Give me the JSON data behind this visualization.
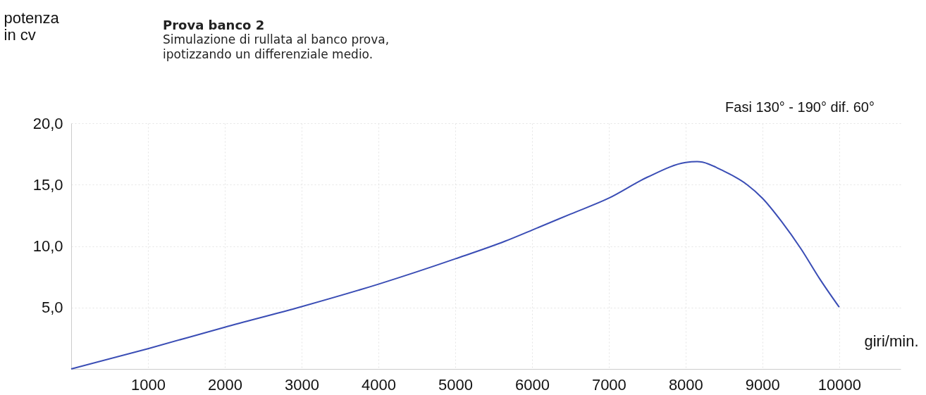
{
  "chart_data": {
    "type": "line",
    "title": "Prova banco 2",
    "subtitle": "Simulazione di rullata al banco prova, ipotizzando un differenziale medio.",
    "xlabel": "giri/min.",
    "ylabel": "potenza in cv",
    "annotations": [
      "Fasi 130° - 190° dif. 60°"
    ],
    "series": [
      {
        "color": "#3a4db5",
        "x": [
          0,
          1000,
          2000,
          3000,
          4000,
          5000,
          5650,
          6000,
          6500,
          7000,
          7500,
          8000,
          8150,
          8500,
          8800,
          9000,
          9250,
          9500,
          9750,
          10000
        ],
        "values": [
          0,
          1.65,
          3.4,
          5.07,
          6.9,
          8.96,
          10.4,
          11.3,
          12.6,
          13.9,
          15.6,
          16.8,
          16.87,
          16.1,
          15.0,
          13.9,
          12.0,
          9.8,
          7.3,
          5.03
        ]
      }
    ],
    "xlim": [
      0,
      10800
    ],
    "xticks": [
      1000,
      2000,
      3000,
      4000,
      5000,
      6000,
      7000,
      8000,
      9000,
      10000
    ],
    "ylim": [
      0,
      20
    ],
    "yticks": [
      {
        "value": 5,
        "label": "5,0"
      },
      {
        "value": 10,
        "label": "10,0"
      },
      {
        "value": 15,
        "label": "15,0"
      },
      {
        "value": 20,
        "label": "20,0"
      }
    ],
    "grid": true,
    "marker": "none",
    "line_style": "solid"
  }
}
